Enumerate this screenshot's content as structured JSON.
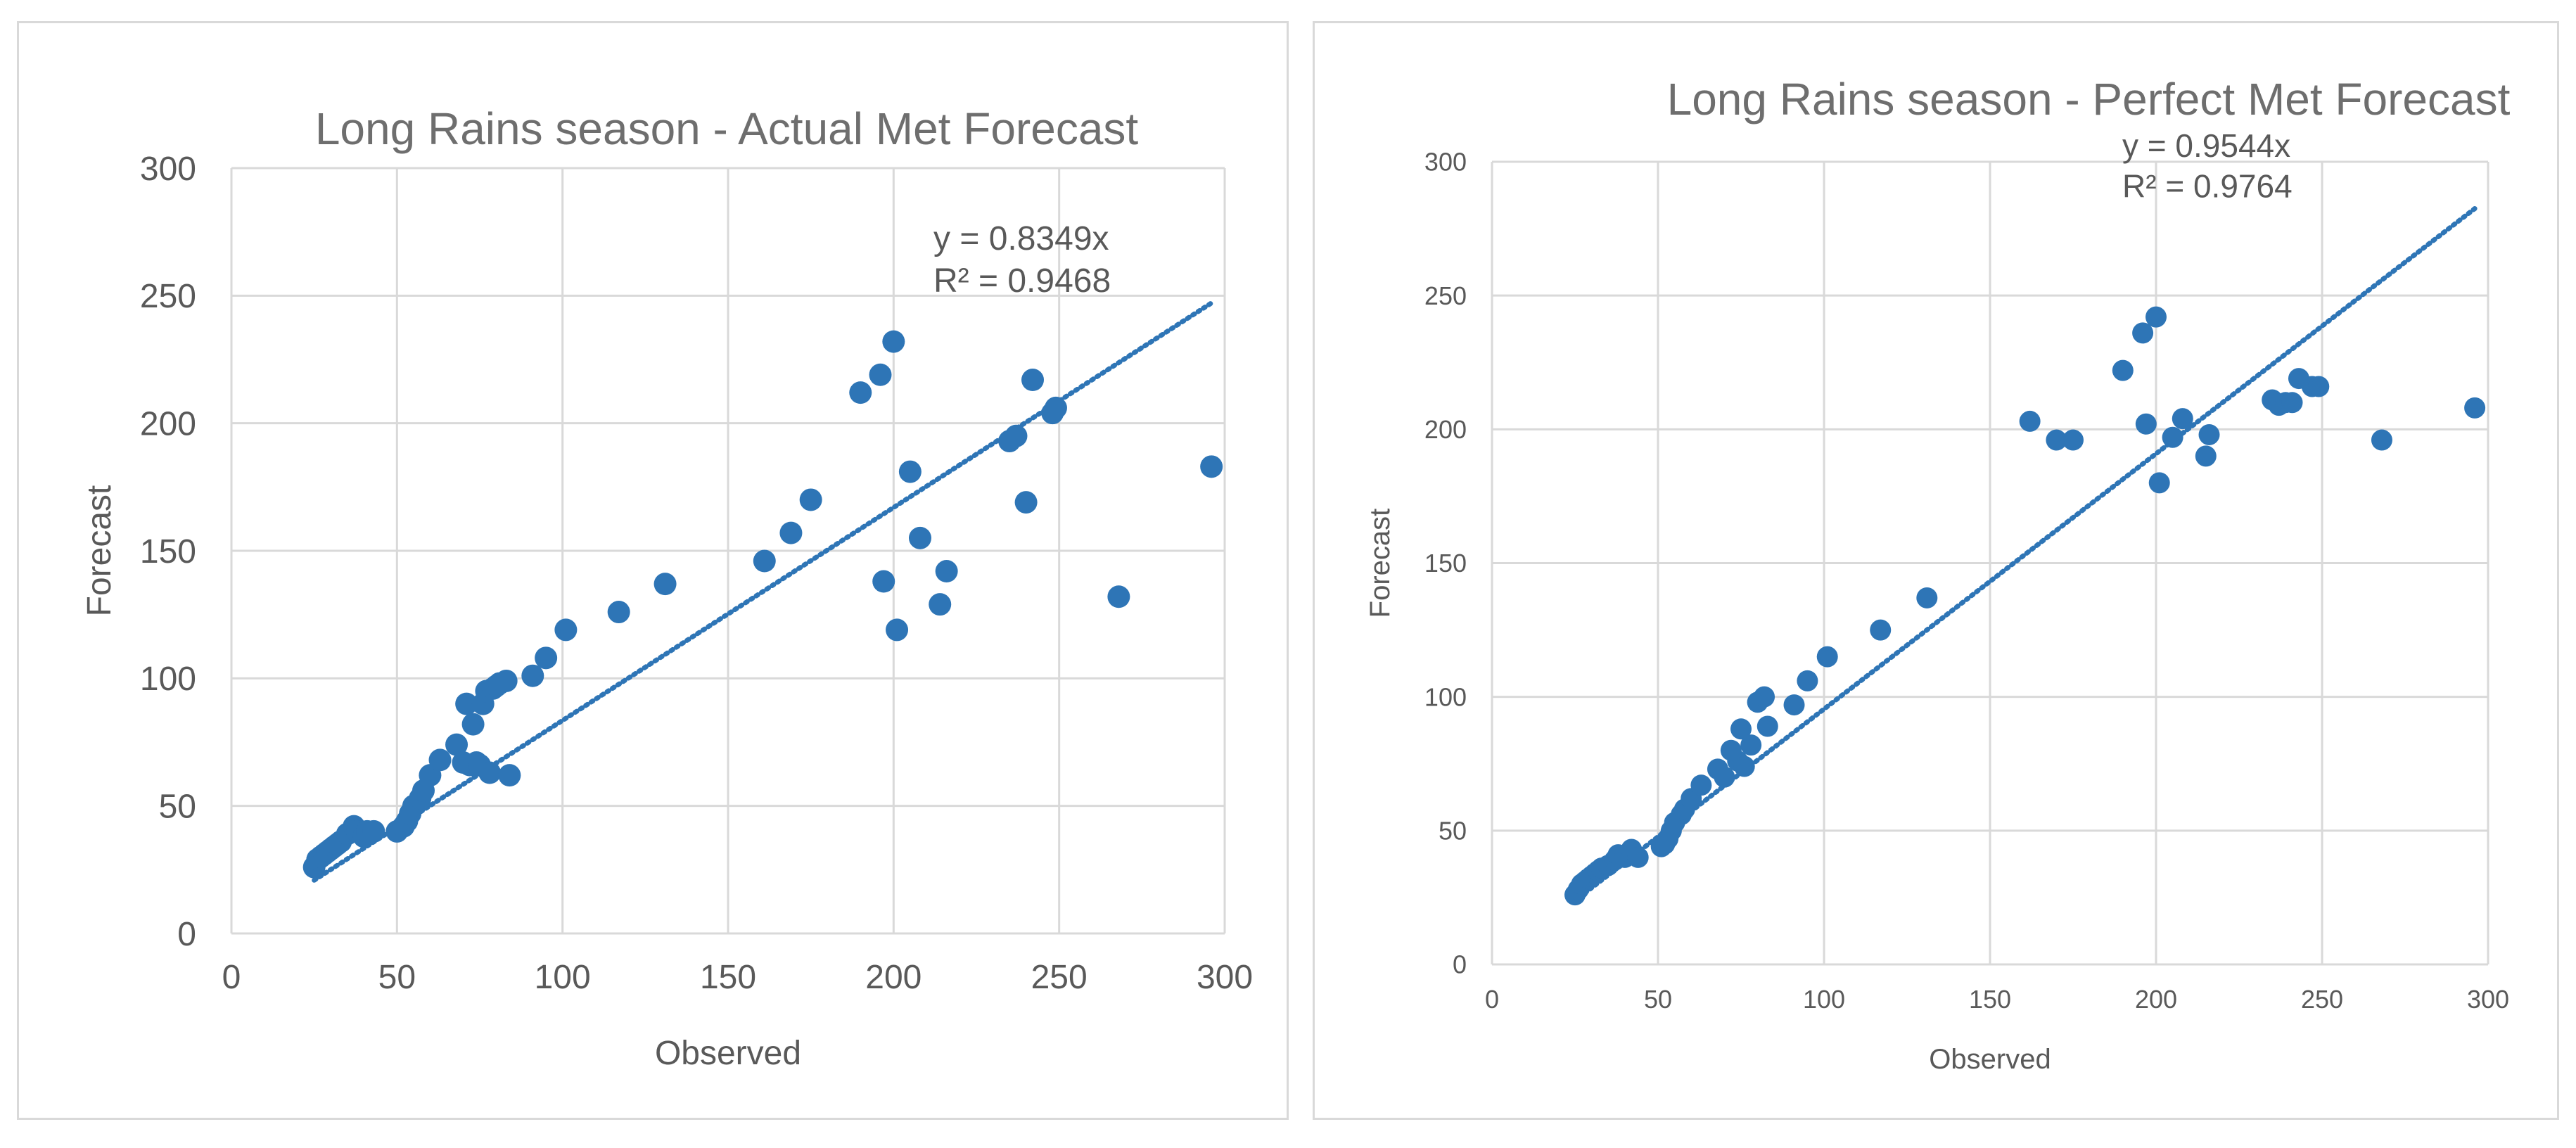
{
  "chart_data": [
    {
      "type": "scatter",
      "title": "Long Rains season - Actual Met Forecast",
      "xlabel": "Observed",
      "ylabel": "Forecast",
      "xlim": [
        0,
        300
      ],
      "ylim": [
        0,
        300
      ],
      "x_ticks": [
        "0",
        "50",
        "100",
        "150",
        "200",
        "250",
        "300"
      ],
      "y_ticks": [
        "0",
        "50",
        "100",
        "150",
        "200",
        "250",
        "300"
      ],
      "grid": true,
      "point_color": "#2e75b6",
      "trendline": {
        "slope": 0.8349,
        "x_range": [
          25,
          296
        ],
        "equation": "y = 0.8349x",
        "r2": "R² = 0.9468"
      },
      "series": [
        {
          "x": [
            25,
            26,
            27,
            28,
            29,
            30,
            31,
            32,
            33,
            35,
            37,
            38,
            40,
            41,
            43,
            50,
            52,
            53,
            54,
            55,
            57,
            58,
            60,
            63,
            68,
            70,
            71,
            72,
            73,
            74,
            75,
            76,
            77,
            78,
            79,
            80,
            81,
            83,
            84,
            91,
            95,
            101,
            117,
            131,
            161,
            169,
            175,
            190,
            196,
            197,
            200,
            201,
            205,
            208,
            214,
            216,
            235,
            237,
            240,
            242,
            248,
            249,
            268,
            296
          ],
          "y": [
            26,
            29,
            30,
            31,
            32,
            33,
            34,
            35,
            36,
            39,
            42,
            40,
            38,
            40,
            40,
            40,
            42,
            44,
            47,
            50,
            53,
            56,
            62,
            68,
            74,
            67,
            90,
            66,
            82,
            67,
            66,
            90,
            95,
            63,
            96,
            97,
            98,
            99,
            62,
            101,
            108,
            119,
            126,
            137,
            146,
            157,
            170,
            212,
            219,
            138,
            232,
            119,
            181,
            155,
            129,
            142,
            193,
            195,
            169,
            217,
            204,
            206,
            132,
            183
          ]
        }
      ]
    },
    {
      "type": "scatter",
      "title": "Long Rains season - Perfect Met Forecast",
      "xlabel": "Observed",
      "ylabel": "Forecast",
      "xlim": [
        0,
        300
      ],
      "ylim": [
        0,
        300
      ],
      "x_ticks": [
        "0",
        "50",
        "100",
        "150",
        "200",
        "250",
        "300"
      ],
      "y_ticks": [
        "0",
        "50",
        "100",
        "150",
        "200",
        "250",
        "300"
      ],
      "grid": true,
      "point_color": "#2e75b6",
      "trendline": {
        "slope": 0.9544,
        "x_range": [
          25,
          296
        ],
        "equation": "y = 0.9544x",
        "r2": "R² = 0.9764"
      },
      "series": [
        {
          "x": [
            25,
            26,
            27,
            28,
            29,
            30,
            31,
            32,
            33,
            35,
            37,
            38,
            40,
            42,
            44,
            51,
            52,
            53,
            54,
            55,
            57,
            58,
            60,
            63,
            68,
            70,
            72,
            74,
            75,
            76,
            78,
            80,
            82,
            83,
            91,
            95,
            101,
            117,
            131,
            162,
            170,
            175,
            190,
            196,
            197,
            200,
            201,
            205,
            208,
            215,
            216,
            235,
            237,
            239,
            241,
            243,
            247,
            249,
            268,
            296
          ],
          "y": [
            26,
            28,
            30,
            31,
            32,
            33,
            34,
            35,
            36,
            37,
            39,
            41,
            40,
            43,
            40,
            44,
            45,
            47,
            50,
            53,
            56,
            58,
            62,
            67,
            73,
            70,
            80,
            76,
            88,
            74,
            82,
            98,
            100,
            89,
            97,
            106,
            115,
            125,
            137,
            203,
            196,
            196,
            222,
            236,
            202,
            242,
            180,
            197,
            204,
            190,
            198,
            211,
            209,
            210,
            210,
            219,
            216,
            216,
            196,
            208
          ]
        }
      ]
    }
  ]
}
